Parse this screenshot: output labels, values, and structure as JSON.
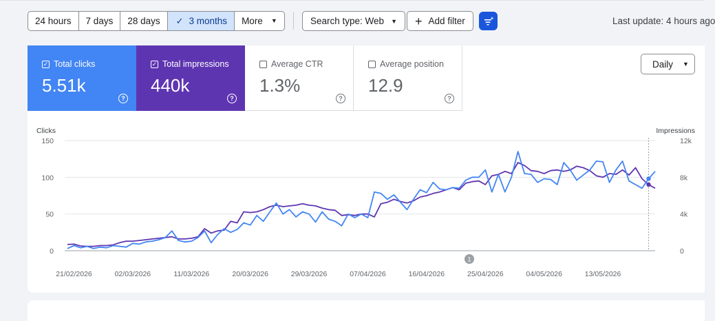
{
  "toolbar": {
    "ranges": [
      {
        "label": "24 hours",
        "active": false
      },
      {
        "label": "7 days",
        "active": false
      },
      {
        "label": "28 days",
        "active": false
      },
      {
        "label": "3 months",
        "active": true
      },
      {
        "label": "More",
        "active": false
      }
    ],
    "search_type": "Search type: Web",
    "add_filter": "Add filter",
    "last_update": "Last update: 4 hours ago"
  },
  "metrics": {
    "clicks": {
      "label": "Total clicks",
      "value": "5.51k",
      "checked": true
    },
    "impressions": {
      "label": "Total impressions",
      "value": "440k",
      "checked": true
    },
    "ctr": {
      "label": "Average CTR",
      "value": "1.3%",
      "checked": false
    },
    "position": {
      "label": "Average position",
      "value": "12.9",
      "checked": false
    }
  },
  "granularity": "Daily",
  "annotation_marker": "1",
  "colors": {
    "clicks": "#4285f4",
    "impressions": "#5e35b1",
    "active_range": "#d2e3fc"
  },
  "chart_data": {
    "type": "line",
    "left_axis_label": "Clicks",
    "right_axis_label": "Impressions",
    "left_ticks": [
      "0",
      "50",
      "100",
      "150"
    ],
    "left_ylim": [
      0,
      150
    ],
    "right_ticks": [
      "0",
      "4k",
      "8k",
      "12k"
    ],
    "right_ylim": [
      0,
      12000
    ],
    "x_start": "20/02/2026",
    "x_tick_labels": [
      "21/02/2026",
      "02/03/2026",
      "11/03/2026",
      "20/03/2026",
      "29/03/2026",
      "07/04/2026",
      "16/04/2026",
      "25/04/2026",
      "04/05/2026",
      "13/05/2026"
    ],
    "grid": true,
    "series": [
      {
        "name": "Total clicks",
        "axis": "left",
        "values": [
          3,
          7,
          4,
          6,
          3,
          5,
          4,
          7,
          6,
          5,
          10,
          9,
          12,
          13,
          15,
          18,
          27,
          14,
          12,
          13,
          18,
          27,
          11,
          22,
          30,
          25,
          29,
          38,
          35,
          48,
          40,
          53,
          65,
          50,
          56,
          46,
          53,
          50,
          39,
          53,
          43,
          40,
          34,
          50,
          45,
          50,
          45,
          80,
          78,
          70,
          76,
          66,
          56,
          70,
          83,
          79,
          93,
          84,
          83,
          86,
          85,
          96,
          100,
          100,
          110,
          80,
          104,
          80,
          100,
          135,
          105,
          104,
          93,
          98,
          97,
          90,
          120,
          110,
          96,
          103,
          110,
          122,
          121,
          93,
          110,
          122,
          95,
          90,
          85,
          98,
          108
        ]
      },
      {
        "name": "Total impressions",
        "axis": "right",
        "values": [
          680,
          720,
          520,
          480,
          480,
          560,
          560,
          640,
          880,
          1040,
          1040,
          1120,
          1200,
          1280,
          1360,
          1440,
          1520,
          1280,
          1280,
          1360,
          1520,
          2400,
          1920,
          2160,
          2240,
          3200,
          3040,
          4240,
          4160,
          4240,
          4480,
          4800,
          4960,
          4800,
          4880,
          4960,
          5120,
          4960,
          4880,
          4640,
          4480,
          4400,
          3840,
          3920,
          3840,
          4000,
          4000,
          3680,
          5120,
          5280,
          5600,
          5360,
          5200,
          5440,
          5840,
          6000,
          6240,
          6400,
          6640,
          6880,
          6640,
          7360,
          7520,
          7600,
          7200,
          8160,
          8320,
          8640,
          8400,
          9600,
          9280,
          8720,
          8640,
          8400,
          8720,
          8800,
          8640,
          8800,
          9200,
          9040,
          8720,
          8160,
          8000,
          8400,
          8320,
          8800,
          8240,
          9040,
          7840,
          7200,
          6800
        ]
      }
    ]
  }
}
